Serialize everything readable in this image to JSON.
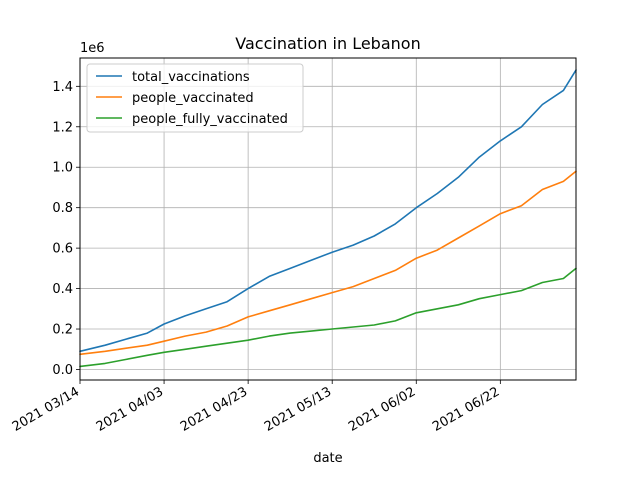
{
  "chart_data": {
    "type": "line",
    "title": "Vaccination in Lebanon",
    "xlabel": "date",
    "ylabel": "",
    "y_offset_label": "1e6",
    "x_tick_labels": [
      "2021 03/14",
      "2021 04/03",
      "2021 04/23",
      "2021 05/13",
      "2021 06/02",
      "2021 06/22"
    ],
    "x_tick_dates": [
      "2021-03-14",
      "2021-04-03",
      "2021-04-23",
      "2021-05-13",
      "2021-06-02",
      "2021-06-22"
    ],
    "xlim": [
      "2021-03-14",
      "2021-07-10"
    ],
    "y_ticks": [
      0.0,
      0.2,
      0.4,
      0.6,
      0.8,
      1.0,
      1.2,
      1.4
    ],
    "y_tick_labels": [
      "0.0",
      "0.2",
      "0.4",
      "0.6",
      "0.8",
      "1.0",
      "1.2",
      "1.4"
    ],
    "ylim": [
      -0.052,
      1.54
    ],
    "grid": true,
    "legend_position": "top-left",
    "x": [
      "2021-03-14",
      "2021-03-20",
      "2021-03-25",
      "2021-03-30",
      "2021-04-03",
      "2021-04-08",
      "2021-04-13",
      "2021-04-18",
      "2021-04-23",
      "2021-04-28",
      "2021-05-03",
      "2021-05-08",
      "2021-05-13",
      "2021-05-18",
      "2021-05-23",
      "2021-05-28",
      "2021-06-02",
      "2021-06-07",
      "2021-06-12",
      "2021-06-17",
      "2021-06-22",
      "2021-06-27",
      "2021-07-02",
      "2021-07-07",
      "2021-07-10"
    ],
    "series": [
      {
        "name": "total_vaccinations",
        "color": "#1f77b4",
        "values": [
          0.09,
          0.12,
          0.15,
          0.18,
          0.225,
          0.265,
          0.3,
          0.335,
          0.4,
          0.46,
          0.5,
          0.54,
          0.58,
          0.615,
          0.66,
          0.72,
          0.8,
          0.87,
          0.95,
          1.05,
          1.13,
          1.2,
          1.31,
          1.38,
          1.48
        ]
      },
      {
        "name": "people_vaccinated",
        "color": "#ff7f0e",
        "values": [
          0.075,
          0.09,
          0.105,
          0.12,
          0.14,
          0.165,
          0.185,
          0.215,
          0.26,
          0.29,
          0.32,
          0.35,
          0.38,
          0.41,
          0.45,
          0.49,
          0.55,
          0.59,
          0.65,
          0.71,
          0.77,
          0.81,
          0.89,
          0.93,
          0.98
        ]
      },
      {
        "name": "people_fully_vaccinated",
        "color": "#2ca02c",
        "values": [
          0.015,
          0.03,
          0.05,
          0.07,
          0.085,
          0.1,
          0.115,
          0.13,
          0.145,
          0.165,
          0.18,
          0.19,
          0.2,
          0.21,
          0.22,
          0.24,
          0.28,
          0.3,
          0.32,
          0.35,
          0.37,
          0.39,
          0.43,
          0.45,
          0.5
        ]
      }
    ]
  }
}
